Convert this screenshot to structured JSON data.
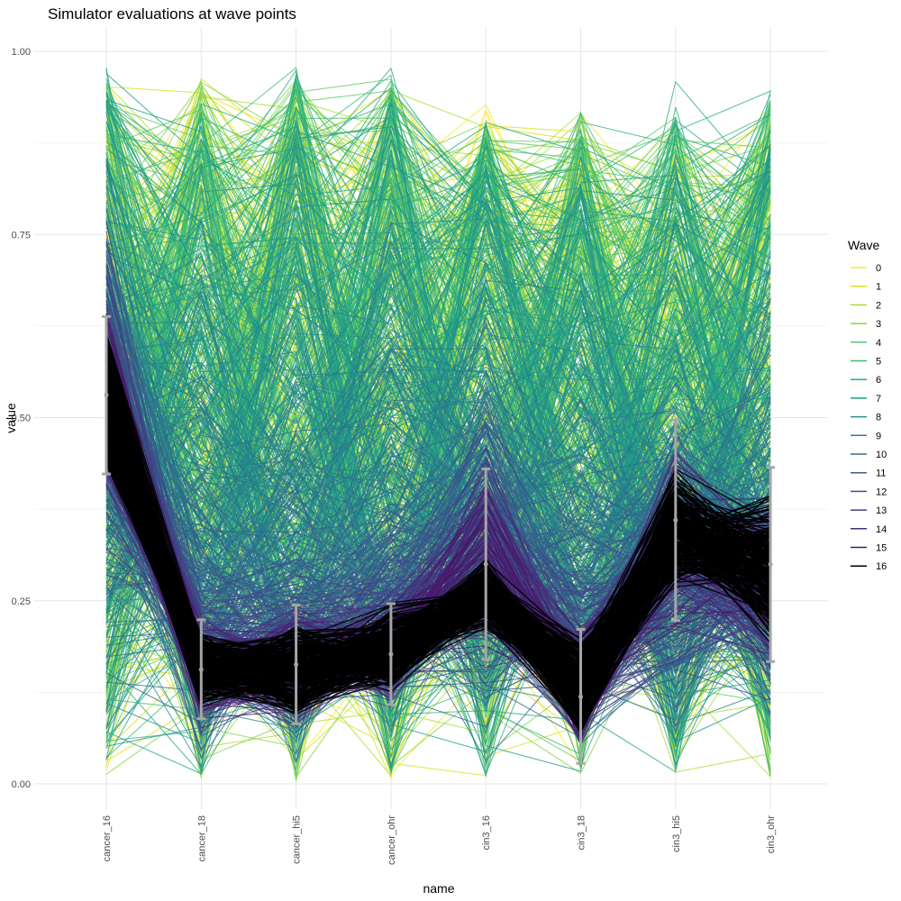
{
  "chart_data": {
    "type": "line",
    "title": "Simulator evaluations at wave points",
    "xlabel": "name",
    "ylabel": "value",
    "categories": [
      "cancer_16",
      "cancer_18",
      "cancer_hi5",
      "cancer_ohr",
      "cin3_16",
      "cin3_18",
      "cin3_hi5",
      "cin3_ohr"
    ],
    "ylim": [
      0,
      1.03
    ],
    "yticks": [
      0.0,
      0.25,
      0.5,
      0.75,
      1.0
    ],
    "ytick_labels": [
      "0.00",
      "0.25",
      "0.50",
      "0.75",
      "1.00"
    ],
    "grid": true,
    "legend": {
      "title": "Wave",
      "position": "right",
      "entries": [
        "0",
        "1",
        "2",
        "3",
        "4",
        "5",
        "6",
        "7",
        "8",
        "9",
        "10",
        "11",
        "12",
        "13",
        "14",
        "15",
        "16"
      ],
      "colors": [
        "#FDE725",
        "#D8E219",
        "#ADDC30",
        "#84D44B",
        "#5EC962",
        "#3FBC73",
        "#28AE80",
        "#1FA088",
        "#21918C",
        "#26828E",
        "#2C728E",
        "#33638D",
        "#3B528B",
        "#424086",
        "#472D7B",
        "#48186A",
        "#000000"
      ]
    },
    "series_ranges": [
      {
        "name": "0",
        "low": [
          0.002,
          0.001,
          0.002,
          0.001,
          0.004,
          0.004,
          0.004,
          0.004
        ],
        "high": [
          0.97,
          0.96,
          0.95,
          0.95,
          0.94,
          0.93,
          0.9,
          0.93
        ]
      },
      {
        "name": "1",
        "low": [
          0.003,
          0.001,
          0.002,
          0.002,
          0.005,
          0.004,
          0.005,
          0.005
        ],
        "high": [
          0.96,
          0.97,
          0.94,
          0.94,
          0.92,
          0.92,
          0.88,
          0.92
        ]
      },
      {
        "name": "2",
        "low": [
          0.003,
          0.002,
          0.003,
          0.002,
          0.005,
          0.005,
          0.005,
          0.005
        ],
        "high": [
          0.96,
          0.97,
          0.96,
          0.95,
          0.92,
          0.93,
          0.84,
          0.93
        ]
      },
      {
        "name": "3",
        "low": [
          0.004,
          0.002,
          0.003,
          0.003,
          0.005,
          0.005,
          0.006,
          0.006
        ],
        "high": [
          0.97,
          0.96,
          0.97,
          0.96,
          0.91,
          0.92,
          0.9,
          0.92
        ]
      },
      {
        "name": "4",
        "low": [
          0.004,
          0.003,
          0.004,
          0.003,
          0.006,
          0.006,
          0.006,
          0.006
        ],
        "high": [
          0.96,
          0.95,
          0.97,
          0.97,
          0.91,
          0.91,
          0.91,
          0.93
        ]
      },
      {
        "name": "5",
        "low": [
          0.005,
          0.003,
          0.004,
          0.004,
          0.006,
          0.006,
          0.007,
          0.007
        ],
        "high": [
          0.97,
          0.96,
          0.98,
          0.97,
          0.92,
          0.92,
          0.92,
          0.94
        ]
      },
      {
        "name": "6",
        "low": [
          0.006,
          0.004,
          0.005,
          0.004,
          0.007,
          0.007,
          0.007,
          0.007
        ],
        "high": [
          0.98,
          0.93,
          0.98,
          0.98,
          0.92,
          0.91,
          0.96,
          0.95
        ]
      },
      {
        "name": "7",
        "low": [
          0.008,
          0.005,
          0.006,
          0.005,
          0.008,
          0.008,
          0.008,
          0.008
        ],
        "high": [
          0.97,
          0.9,
          0.93,
          0.95,
          0.9,
          0.88,
          0.9,
          0.91
        ]
      },
      {
        "name": "8",
        "low": [
          0.012,
          0.006,
          0.008,
          0.007,
          0.01,
          0.009,
          0.01,
          0.01
        ],
        "high": [
          0.96,
          0.88,
          0.9,
          0.93,
          0.88,
          0.86,
          0.86,
          0.88
        ]
      },
      {
        "name": "9",
        "low": [
          0.02,
          0.008,
          0.01,
          0.01,
          0.012,
          0.011,
          0.012,
          0.012
        ],
        "high": [
          0.93,
          0.8,
          0.8,
          0.85,
          0.8,
          0.75,
          0.78,
          0.8
        ]
      },
      {
        "name": "10",
        "low": [
          0.05,
          0.012,
          0.015,
          0.02,
          0.02,
          0.015,
          0.02,
          0.02
        ],
        "high": [
          0.9,
          0.65,
          0.6,
          0.7,
          0.7,
          0.6,
          0.65,
          0.7
        ]
      },
      {
        "name": "11",
        "low": [
          0.1,
          0.02,
          0.02,
          0.04,
          0.04,
          0.02,
          0.04,
          0.04
        ],
        "high": [
          0.85,
          0.45,
          0.45,
          0.5,
          0.6,
          0.45,
          0.55,
          0.55
        ]
      },
      {
        "name": "12",
        "low": [
          0.2,
          0.04,
          0.04,
          0.07,
          0.08,
          0.03,
          0.08,
          0.08
        ],
        "high": [
          0.8,
          0.35,
          0.38,
          0.4,
          0.55,
          0.35,
          0.5,
          0.45
        ]
      },
      {
        "name": "13",
        "low": [
          0.3,
          0.06,
          0.06,
          0.09,
          0.12,
          0.04,
          0.12,
          0.12
        ],
        "high": [
          0.75,
          0.28,
          0.3,
          0.33,
          0.5,
          0.28,
          0.48,
          0.42
        ]
      },
      {
        "name": "14",
        "low": [
          0.38,
          0.07,
          0.07,
          0.1,
          0.15,
          0.04,
          0.18,
          0.15
        ],
        "high": [
          0.7,
          0.24,
          0.26,
          0.28,
          0.46,
          0.23,
          0.46,
          0.4
        ]
      },
      {
        "name": "15",
        "low": [
          0.42,
          0.08,
          0.07,
          0.11,
          0.16,
          0.04,
          0.2,
          0.16
        ],
        "high": [
          0.66,
          0.22,
          0.24,
          0.26,
          0.44,
          0.21,
          0.47,
          0.4
        ]
      },
      {
        "name": "16",
        "low": [
          0.43,
          0.1,
          0.09,
          0.12,
          0.21,
          0.06,
          0.26,
          0.19
        ],
        "high": [
          0.62,
          0.21,
          0.22,
          0.25,
          0.31,
          0.2,
          0.44,
          0.4
        ]
      }
    ],
    "target_errorbars": [
      {
        "name": "cancer_16",
        "mean": 0.531,
        "lower": 0.423,
        "upper": 0.638
      },
      {
        "name": "cancer_18",
        "mean": 0.156,
        "lower": 0.089,
        "upper": 0.224
      },
      {
        "name": "cancer_hi5",
        "mean": 0.163,
        "lower": 0.082,
        "upper": 0.244
      },
      {
        "name": "cancer_ohr",
        "mean": 0.177,
        "lower": 0.108,
        "upper": 0.246
      },
      {
        "name": "cin3_16",
        "mean": 0.3,
        "lower": 0.17,
        "upper": 0.43
      },
      {
        "name": "cin3_18",
        "mean": 0.119,
        "lower": 0.028,
        "upper": 0.211
      },
      {
        "name": "cin3_hi5",
        "mean": 0.36,
        "lower": 0.223,
        "upper": 0.497
      },
      {
        "name": "cin3_ohr",
        "mean": 0.3,
        "lower": 0.167,
        "upper": 0.432
      }
    ],
    "errorbar_color": "#A6A6A6"
  }
}
